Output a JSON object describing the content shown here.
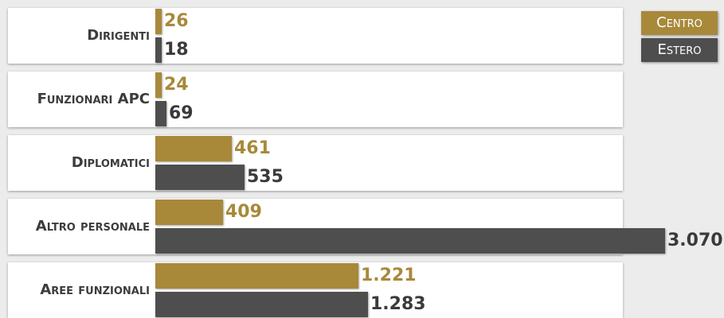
{
  "chart_data": {
    "type": "bar",
    "orientation": "horizontal",
    "categories": [
      "Dirigenti",
      "Funzionari APC",
      "Diplomatici",
      "Altro personale",
      "Aree funzionali"
    ],
    "series": [
      {
        "name": "Centro",
        "color": "#a8893a",
        "values": [
          26,
          24,
          461,
          409,
          1221
        ],
        "labels": [
          "26",
          "24",
          "461",
          "409",
          "1.221"
        ]
      },
      {
        "name": "Estero",
        "color": "#4e4e4e",
        "values": [
          18,
          69,
          535,
          3070,
          1283
        ],
        "labels": [
          "18",
          "69",
          "535",
          "3.070",
          "1.283"
        ]
      }
    ],
    "legend_position": "top-right",
    "grid": false
  }
}
